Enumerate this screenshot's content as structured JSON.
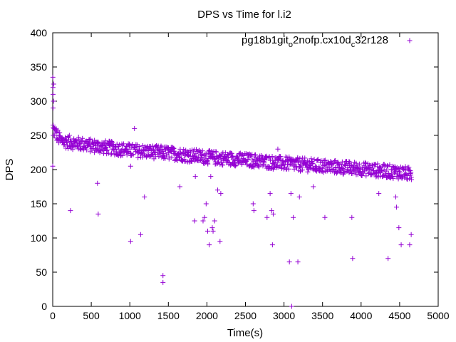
{
  "chart_data": {
    "type": "scatter",
    "title": "DPS vs Time for l.i2",
    "xlabel": "Time(s)",
    "ylabel": "DPS",
    "xlim": [
      0,
      5000
    ],
    "ylim": [
      0,
      400
    ],
    "xticks": [
      0,
      500,
      1000,
      1500,
      2000,
      2500,
      3000,
      3500,
      4000,
      4500,
      5000
    ],
    "yticks": [
      0,
      50,
      100,
      150,
      200,
      250,
      300,
      350,
      400
    ],
    "grid": false,
    "legend_position": "top-right",
    "marker": "+",
    "series": [
      {
        "name_parts": [
          "pg18b1git",
          "o",
          "2nofp.cx10d",
          "c",
          "32r128"
        ],
        "color": "#9400D3",
        "trend": [
          [
            5,
            258
          ],
          [
            100,
            242
          ],
          [
            500,
            235
          ],
          [
            1000,
            228
          ],
          [
            1500,
            224
          ],
          [
            2000,
            218
          ],
          [
            2500,
            214
          ],
          [
            3000,
            209
          ],
          [
            3500,
            205
          ],
          [
            4000,
            201
          ],
          [
            4500,
            196
          ],
          [
            4650,
            193
          ]
        ],
        "points": [
          [
            0,
            205
          ],
          [
            2,
            335
          ],
          [
            3,
            320
          ],
          [
            4,
            310
          ],
          [
            5,
            290
          ],
          [
            6,
            265
          ],
          [
            8,
            250
          ],
          [
            10,
            300
          ],
          [
            12,
            325
          ],
          [
            230,
            140
          ],
          [
            580,
            180
          ],
          [
            590,
            135
          ],
          [
            1010,
            95
          ],
          [
            1010,
            205
          ],
          [
            1060,
            260
          ],
          [
            1140,
            105
          ],
          [
            1190,
            160
          ],
          [
            1430,
            45
          ],
          [
            1430,
            35
          ],
          [
            1650,
            175
          ],
          [
            1840,
            125
          ],
          [
            1850,
            190
          ],
          [
            1950,
            125
          ],
          [
            1970,
            130
          ],
          [
            1990,
            150
          ],
          [
            2010,
            110
          ],
          [
            2030,
            90
          ],
          [
            2050,
            190
          ],
          [
            2070,
            115
          ],
          [
            2080,
            110
          ],
          [
            2100,
            125
          ],
          [
            2140,
            170
          ],
          [
            2170,
            95
          ],
          [
            2180,
            165
          ],
          [
            2600,
            150
          ],
          [
            2610,
            140
          ],
          [
            2780,
            130
          ],
          [
            2820,
            165
          ],
          [
            2840,
            140
          ],
          [
            2850,
            90
          ],
          [
            2860,
            135
          ],
          [
            2920,
            230
          ],
          [
            3070,
            65
          ],
          [
            3090,
            165
          ],
          [
            3100,
            0
          ],
          [
            3120,
            130
          ],
          [
            3180,
            65
          ],
          [
            3200,
            160
          ],
          [
            3380,
            175
          ],
          [
            3530,
            130
          ],
          [
            3880,
            130
          ],
          [
            3890,
            70
          ],
          [
            4230,
            165
          ],
          [
            4350,
            70
          ],
          [
            4400,
            190
          ],
          [
            4450,
            160
          ],
          [
            4460,
            145
          ],
          [
            4490,
            115
          ],
          [
            4520,
            90
          ],
          [
            4630,
            90
          ],
          [
            4650,
            105
          ]
        ]
      }
    ]
  }
}
